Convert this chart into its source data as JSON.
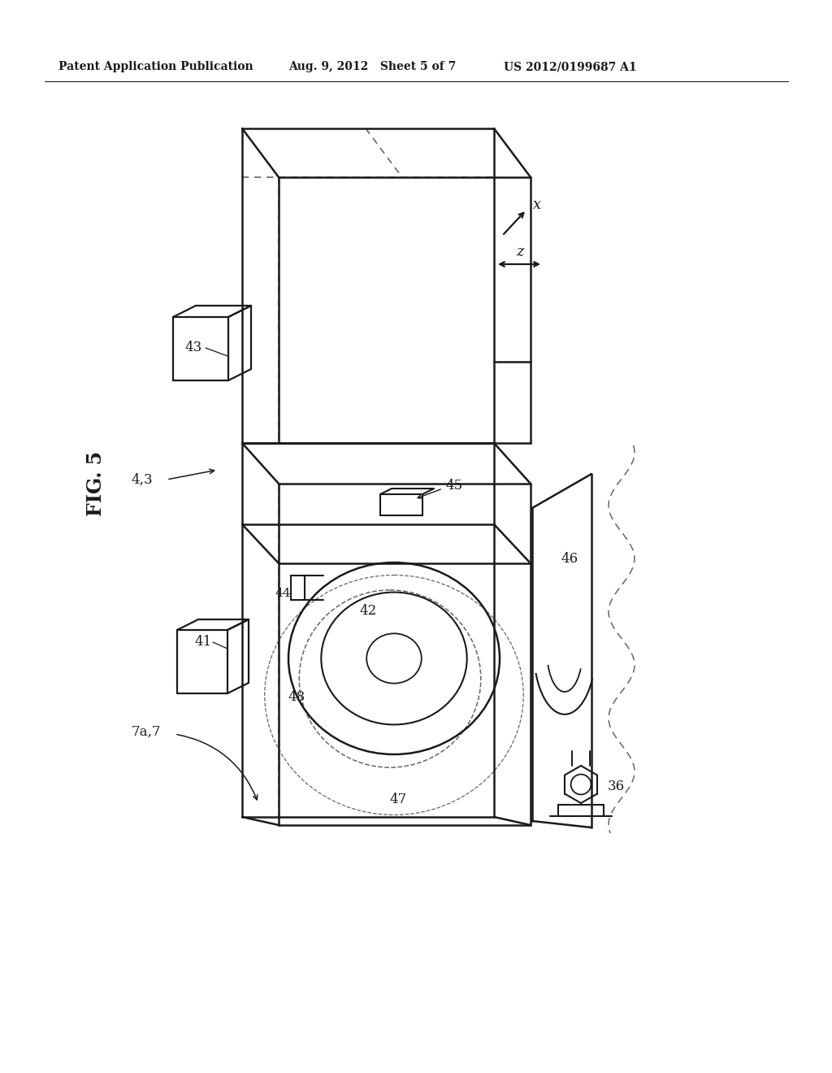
{
  "bg_color": "#ffffff",
  "line_color": "#1a1a1a",
  "dashed_color": "#666666",
  "header_left": "Patent Application Publication",
  "header_mid": "Aug. 9, 2012   Sheet 5 of 7",
  "header_right": "US 2012/0199687 A1",
  "fig_label": "FIG. 5"
}
